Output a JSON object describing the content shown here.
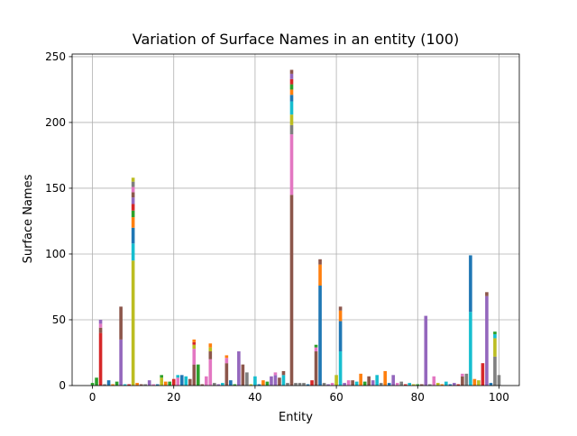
{
  "chart_data": {
    "type": "bar",
    "stacked": true,
    "title": "Variation of Surface Names in an entity (100)",
    "xlabel": "Entity",
    "ylabel": "Surface Names",
    "xlim": [
      -5,
      105
    ],
    "ylim": [
      0,
      252
    ],
    "xticks": [
      0,
      20,
      40,
      60,
      80,
      100
    ],
    "yticks": [
      0,
      50,
      100,
      150,
      200,
      250
    ],
    "grid": true,
    "legend": "none",
    "palette": [
      "#1f77b4",
      "#ff7f0e",
      "#2ca02c",
      "#d62728",
      "#9467bd",
      "#8c564b",
      "#e377c2",
      "#7f7f7f",
      "#bcbd22",
      "#17becf"
    ],
    "bars": [
      {
        "x": 0,
        "segments": [
          [
            2,
            "#2ca02c"
          ]
        ]
      },
      {
        "x": 1,
        "segments": [
          [
            6,
            "#2ca02c"
          ]
        ]
      },
      {
        "x": 2,
        "segments": [
          [
            40,
            "#d62728"
          ],
          [
            4,
            "#8c564b"
          ],
          [
            3,
            "#e377c2"
          ],
          [
            3,
            "#9467bd"
          ]
        ]
      },
      {
        "x": 3,
        "segments": [
          [
            1,
            "#7f7f7f"
          ]
        ]
      },
      {
        "x": 4,
        "segments": [
          [
            4,
            "#1f77b4"
          ]
        ]
      },
      {
        "x": 5,
        "segments": [
          [
            1,
            "#ff7f0e"
          ]
        ]
      },
      {
        "x": 6,
        "segments": [
          [
            3,
            "#2ca02c"
          ]
        ]
      },
      {
        "x": 7,
        "segments": [
          [
            35,
            "#9467bd"
          ],
          [
            25,
            "#8c564b"
          ]
        ]
      },
      {
        "x": 8,
        "segments": [
          [
            1,
            "#17becf"
          ]
        ]
      },
      {
        "x": 9,
        "segments": [
          [
            1,
            "#d62728"
          ]
        ]
      },
      {
        "x": 10,
        "segments": [
          [
            95,
            "#bcbd22"
          ],
          [
            13,
            "#17becf"
          ],
          [
            12,
            "#1f77b4"
          ],
          [
            8,
            "#ff7f0e"
          ],
          [
            5,
            "#2ca02c"
          ],
          [
            5,
            "#d62728"
          ],
          [
            5,
            "#9467bd"
          ],
          [
            4,
            "#8c564b"
          ],
          [
            4,
            "#e377c2"
          ],
          [
            4,
            "#7f7f7f"
          ],
          [
            3,
            "#bcbd22"
          ]
        ]
      },
      {
        "x": 11,
        "segments": [
          [
            2,
            "#ff7f0e"
          ]
        ]
      },
      {
        "x": 12,
        "segments": [
          [
            1,
            "#8c564b"
          ]
        ]
      },
      {
        "x": 13,
        "segments": [
          [
            1,
            "#7f7f7f"
          ]
        ]
      },
      {
        "x": 14,
        "segments": [
          [
            4,
            "#9467bd"
          ]
        ]
      },
      {
        "x": 15,
        "segments": [
          [
            1,
            "#e377c2"
          ]
        ]
      },
      {
        "x": 16,
        "segments": [
          [
            1,
            "#1f77b4"
          ]
        ]
      },
      {
        "x": 17,
        "segments": [
          [
            6,
            "#bcbd22"
          ],
          [
            2,
            "#2ca02c"
          ]
        ]
      },
      {
        "x": 18,
        "segments": [
          [
            3,
            "#ff7f0e"
          ]
        ]
      },
      {
        "x": 19,
        "segments": [
          [
            3,
            "#2ca02c"
          ]
        ]
      },
      {
        "x": 20,
        "segments": [
          [
            5,
            "#d62728"
          ]
        ]
      },
      {
        "x": 21,
        "segments": [
          [
            6,
            "#e377c2"
          ],
          [
            2,
            "#17becf"
          ]
        ]
      },
      {
        "x": 22,
        "segments": [
          [
            8,
            "#1f77b4"
          ]
        ]
      },
      {
        "x": 23,
        "segments": [
          [
            7,
            "#17becf"
          ]
        ]
      },
      {
        "x": 24,
        "segments": [
          [
            5,
            "#8c564b"
          ]
        ]
      },
      {
        "x": 25,
        "segments": [
          [
            16,
            "#8c564b"
          ],
          [
            12,
            "#e377c2"
          ],
          [
            3,
            "#bcbd22"
          ],
          [
            2,
            "#d62728"
          ],
          [
            2,
            "#ff7f0e"
          ]
        ]
      },
      {
        "x": 26,
        "segments": [
          [
            16,
            "#2ca02c"
          ]
        ]
      },
      {
        "x": 27,
        "segments": [
          [
            1,
            "#8c564b"
          ]
        ]
      },
      {
        "x": 28,
        "segments": [
          [
            7,
            "#e377c2"
          ]
        ]
      },
      {
        "x": 29,
        "segments": [
          [
            20,
            "#e377c2"
          ],
          [
            6,
            "#8c564b"
          ],
          [
            3,
            "#bcbd22"
          ],
          [
            3,
            "#ff7f0e"
          ]
        ]
      },
      {
        "x": 30,
        "segments": [
          [
            2,
            "#7f7f7f"
          ]
        ]
      },
      {
        "x": 31,
        "segments": [
          [
            1,
            "#9467bd"
          ]
        ]
      },
      {
        "x": 32,
        "segments": [
          [
            2,
            "#17becf"
          ]
        ]
      },
      {
        "x": 33,
        "segments": [
          [
            17,
            "#8c564b"
          ],
          [
            4,
            "#e377c2"
          ],
          [
            2,
            "#ff7f0e"
          ]
        ]
      },
      {
        "x": 34,
        "segments": [
          [
            4,
            "#1f77b4"
          ]
        ]
      },
      {
        "x": 35,
        "segments": [
          [
            1,
            "#2ca02c"
          ]
        ]
      },
      {
        "x": 36,
        "segments": [
          [
            26,
            "#9467bd"
          ]
        ]
      },
      {
        "x": 37,
        "segments": [
          [
            16,
            "#8c564b"
          ]
        ]
      },
      {
        "x": 38,
        "segments": [
          [
            10,
            "#7f7f7f"
          ]
        ]
      },
      {
        "x": 39,
        "segments": [
          [
            1,
            "#bcbd22"
          ]
        ]
      },
      {
        "x": 40,
        "segments": [
          [
            7,
            "#17becf"
          ]
        ]
      },
      {
        "x": 41,
        "segments": [
          [
            1,
            "#1f77b4"
          ]
        ]
      },
      {
        "x": 42,
        "segments": [
          [
            4,
            "#ff7f0e"
          ]
        ]
      },
      {
        "x": 43,
        "segments": [
          [
            3,
            "#2ca02c"
          ]
        ]
      },
      {
        "x": 44,
        "segments": [
          [
            7,
            "#9467bd"
          ]
        ]
      },
      {
        "x": 45,
        "segments": [
          [
            8,
            "#9467bd"
          ],
          [
            2,
            "#e377c2"
          ]
        ]
      },
      {
        "x": 46,
        "segments": [
          [
            6,
            "#8c564b"
          ]
        ]
      },
      {
        "x": 47,
        "segments": [
          [
            8,
            "#17becf"
          ],
          [
            3,
            "#8c564b"
          ]
        ]
      },
      {
        "x": 48,
        "segments": [
          [
            2,
            "#7f7f7f"
          ]
        ]
      },
      {
        "x": 49,
        "segments": [
          [
            145,
            "#8c564b"
          ],
          [
            46,
            "#e377c2"
          ],
          [
            7,
            "#7f7f7f"
          ],
          [
            8,
            "#bcbd22"
          ],
          [
            10,
            "#17becf"
          ],
          [
            5,
            "#1f77b4"
          ],
          [
            4,
            "#ff7f0e"
          ],
          [
            4,
            "#2ca02c"
          ],
          [
            4,
            "#d62728"
          ],
          [
            4,
            "#9467bd"
          ],
          [
            3,
            "#8c564b"
          ]
        ]
      },
      {
        "x": 50,
        "segments": [
          [
            2,
            "#7f7f7f"
          ]
        ]
      },
      {
        "x": 51,
        "segments": [
          [
            2,
            "#7f7f7f"
          ]
        ]
      },
      {
        "x": 52,
        "segments": [
          [
            2,
            "#7f7f7f"
          ]
        ]
      },
      {
        "x": 53,
        "segments": [
          [
            1,
            "#1f77b4"
          ]
        ]
      },
      {
        "x": 54,
        "segments": [
          [
            4,
            "#d62728"
          ]
        ]
      },
      {
        "x": 55,
        "segments": [
          [
            26,
            "#8c564b"
          ],
          [
            3,
            "#e377c2"
          ],
          [
            2,
            "#2ca02c"
          ]
        ]
      },
      {
        "x": 56,
        "segments": [
          [
            76,
            "#1f77b4"
          ],
          [
            16,
            "#ff7f0e"
          ],
          [
            4,
            "#8c564b"
          ]
        ]
      },
      {
        "x": 57,
        "segments": [
          [
            2,
            "#7f7f7f"
          ]
        ]
      },
      {
        "x": 58,
        "segments": [
          [
            1,
            "#9467bd"
          ]
        ]
      },
      {
        "x": 59,
        "segments": [
          [
            2,
            "#e377c2"
          ]
        ]
      },
      {
        "x": 60,
        "segments": [
          [
            8,
            "#bcbd22"
          ]
        ]
      },
      {
        "x": 61,
        "segments": [
          [
            26,
            "#17becf"
          ],
          [
            23,
            "#1f77b4"
          ],
          [
            8,
            "#ff7f0e"
          ],
          [
            3,
            "#8c564b"
          ]
        ]
      },
      {
        "x": 62,
        "segments": [
          [
            2,
            "#9467bd"
          ]
        ]
      },
      {
        "x": 63,
        "segments": [
          [
            4,
            "#e377c2"
          ]
        ]
      },
      {
        "x": 64,
        "segments": [
          [
            4,
            "#8c564b"
          ]
        ]
      },
      {
        "x": 65,
        "segments": [
          [
            3,
            "#17becf"
          ]
        ]
      },
      {
        "x": 66,
        "segments": [
          [
            9,
            "#ff7f0e"
          ]
        ]
      },
      {
        "x": 67,
        "segments": [
          [
            3,
            "#2ca02c"
          ]
        ]
      },
      {
        "x": 68,
        "segments": [
          [
            7,
            "#8c564b"
          ]
        ]
      },
      {
        "x": 69,
        "segments": [
          [
            4,
            "#9467bd"
          ]
        ]
      },
      {
        "x": 70,
        "segments": [
          [
            8,
            "#17becf"
          ]
        ]
      },
      {
        "x": 71,
        "segments": [
          [
            2,
            "#7f7f7f"
          ]
        ]
      },
      {
        "x": 72,
        "segments": [
          [
            11,
            "#ff7f0e"
          ]
        ]
      },
      {
        "x": 73,
        "segments": [
          [
            2,
            "#1f77b4"
          ]
        ]
      },
      {
        "x": 74,
        "segments": [
          [
            8,
            "#9467bd"
          ]
        ]
      },
      {
        "x": 75,
        "segments": [
          [
            2,
            "#e377c2"
          ]
        ]
      },
      {
        "x": 76,
        "segments": [
          [
            3,
            "#7f7f7f"
          ]
        ]
      },
      {
        "x": 77,
        "segments": [
          [
            1,
            "#d62728"
          ]
        ]
      },
      {
        "x": 78,
        "segments": [
          [
            2,
            "#17becf"
          ]
        ]
      },
      {
        "x": 79,
        "segments": [
          [
            1,
            "#bcbd22"
          ]
        ]
      },
      {
        "x": 80,
        "segments": [
          [
            1,
            "#2ca02c"
          ]
        ]
      },
      {
        "x": 81,
        "segments": [
          [
            1,
            "#8c564b"
          ]
        ]
      },
      {
        "x": 82,
        "segments": [
          [
            53,
            "#9467bd"
          ]
        ]
      },
      {
        "x": 83,
        "segments": [
          [
            1,
            "#7f7f7f"
          ]
        ]
      },
      {
        "x": 84,
        "segments": [
          [
            7,
            "#e377c2"
          ]
        ]
      },
      {
        "x": 85,
        "segments": [
          [
            2,
            "#bcbd22"
          ]
        ]
      },
      {
        "x": 86,
        "segments": [
          [
            1,
            "#ff7f0e"
          ]
        ]
      },
      {
        "x": 87,
        "segments": [
          [
            3,
            "#17becf"
          ]
        ]
      },
      {
        "x": 88,
        "segments": [
          [
            1,
            "#1f77b4"
          ]
        ]
      },
      {
        "x": 89,
        "segments": [
          [
            2,
            "#9467bd"
          ]
        ]
      },
      {
        "x": 90,
        "segments": [
          [
            1,
            "#d62728"
          ]
        ]
      },
      {
        "x": 91,
        "segments": [
          [
            7,
            "#8c564b"
          ],
          [
            2,
            "#e377c2"
          ]
        ]
      },
      {
        "x": 92,
        "segments": [
          [
            9,
            "#7f7f7f"
          ]
        ]
      },
      {
        "x": 93,
        "segments": [
          [
            56,
            "#17becf"
          ],
          [
            43,
            "#1f77b4"
          ]
        ]
      },
      {
        "x": 94,
        "segments": [
          [
            5,
            "#ff7f0e"
          ]
        ]
      },
      {
        "x": 95,
        "segments": [
          [
            4,
            "#bcbd22"
          ]
        ]
      },
      {
        "x": 96,
        "segments": [
          [
            17,
            "#d62728"
          ]
        ]
      },
      {
        "x": 97,
        "segments": [
          [
            68,
            "#9467bd"
          ],
          [
            3,
            "#8c564b"
          ]
        ]
      },
      {
        "x": 98,
        "segments": [
          [
            2,
            "#1f77b4"
          ]
        ]
      },
      {
        "x": 99,
        "segments": [
          [
            22,
            "#7f7f7f"
          ],
          [
            14,
            "#bcbd22"
          ],
          [
            3,
            "#17becf"
          ],
          [
            2,
            "#2ca02c"
          ]
        ]
      },
      {
        "x": 100,
        "segments": [
          [
            8,
            "#7f7f7f"
          ]
        ]
      }
    ]
  }
}
